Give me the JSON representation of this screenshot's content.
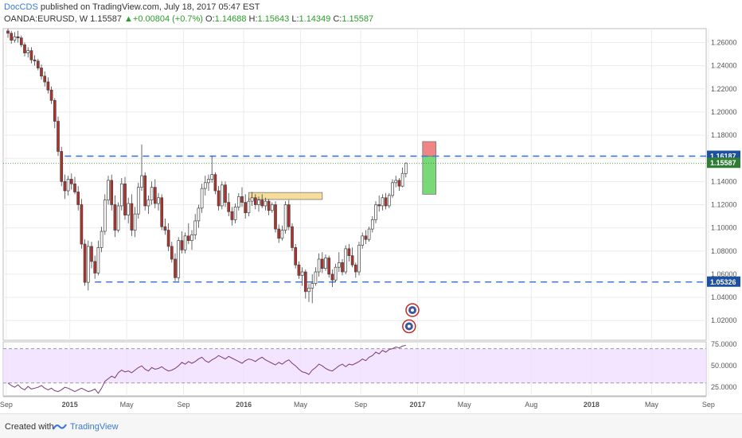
{
  "header": {
    "author": "DocCDS",
    "published_text": "published on TradingView.com, July 18, 2017 05:47 EST",
    "symbol": "OANDA:EURUSD, W",
    "last": "1.15587",
    "change": "+0.00804 (+0.7%)",
    "open_label": "O:",
    "open": "1.14688",
    "high_label": "H:",
    "high": "1.15643",
    "low_label": "L:",
    "low": "1.14349",
    "close_label": "C:",
    "close": "1.15587"
  },
  "footer": {
    "created_with": "Created with",
    "brand": "TradingView"
  },
  "chart_data": {
    "type": "candlestick",
    "timeframe": "W",
    "ylim": [
      1.003,
      1.272
    ],
    "x_tick_labels": [
      "Sep",
      "2015",
      "May",
      "Sep",
      "2016",
      "May",
      "Sep",
      "2017",
      "May",
      "Aug",
      "2018",
      "May",
      "Sep"
    ],
    "y_tick_labels": [
      "1.26000",
      "1.24000",
      "1.22000",
      "1.20000",
      "1.18000",
      "1.16000",
      "1.14000",
      "1.12000",
      "1.10000",
      "1.08000",
      "1.06000",
      "1.04000",
      "1.02000"
    ],
    "y_ticks": [
      1.26,
      1.24,
      1.22,
      1.2,
      1.18,
      1.16,
      1.14,
      1.12,
      1.1,
      1.08,
      1.06,
      1.04,
      1.02
    ],
    "price_labels": [
      {
        "text": "1.16187",
        "value": 1.16187,
        "color": "#1e50a0"
      },
      {
        "text": "1.15587",
        "value": 1.15587,
        "color": "#2e7d32"
      },
      {
        "text": "1.05326",
        "value": 1.05326,
        "color": "#1e50a0"
      }
    ],
    "hlines": [
      {
        "value": 1.16187,
        "style": "dashed",
        "color": "#3c78d8"
      },
      {
        "value": 1.05326,
        "style": "dashed",
        "color": "#3c78d8"
      },
      {
        "value": 1.15587,
        "style": "dotted",
        "color": "#2e7d32"
      }
    ],
    "zones": [
      {
        "name": "supply-box",
        "from_week": 72,
        "to_week": 94,
        "low": 1.1245,
        "high": 1.1305,
        "color": "#f5d78b"
      },
      {
        "name": "stop-box",
        "from_week": 124,
        "to_week": 128,
        "low": 1.1619,
        "high": 1.1745,
        "color": "#ee6e6e"
      },
      {
        "name": "target-box",
        "from_week": 124,
        "to_week": 128,
        "low": 1.129,
        "high": 1.1619,
        "color": "#5fd35f"
      }
    ],
    "candles": [
      [
        1.27,
        1.272,
        1.264,
        1.268
      ],
      [
        1.268,
        1.27,
        1.259,
        1.262
      ],
      [
        1.262,
        1.269,
        1.26,
        1.265
      ],
      [
        1.265,
        1.27,
        1.26,
        1.264
      ],
      [
        1.264,
        1.266,
        1.256,
        1.258
      ],
      [
        1.258,
        1.26,
        1.248,
        1.251
      ],
      [
        1.251,
        1.256,
        1.247,
        1.253
      ],
      [
        1.253,
        1.256,
        1.242,
        1.245
      ],
      [
        1.245,
        1.249,
        1.24,
        1.244
      ],
      [
        1.244,
        1.246,
        1.236,
        1.238
      ],
      [
        1.238,
        1.241,
        1.228,
        1.231
      ],
      [
        1.231,
        1.235,
        1.222,
        1.226
      ],
      [
        1.226,
        1.23,
        1.216,
        1.219
      ],
      [
        1.219,
        1.222,
        1.207,
        1.21
      ],
      [
        1.21,
        1.212,
        1.186,
        1.192
      ],
      [
        1.192,
        1.196,
        1.162,
        1.166
      ],
      [
        1.166,
        1.17,
        1.136,
        1.14
      ],
      [
        1.14,
        1.146,
        1.125,
        1.132
      ],
      [
        1.132,
        1.145,
        1.128,
        1.142
      ],
      [
        1.142,
        1.147,
        1.133,
        1.138
      ],
      [
        1.138,
        1.144,
        1.129,
        1.131
      ],
      [
        1.131,
        1.136,
        1.115,
        1.12
      ],
      [
        1.12,
        1.125,
        1.082,
        1.086
      ],
      [
        1.086,
        1.09,
        1.05,
        1.053
      ],
      [
        1.053,
        1.089,
        1.046,
        1.084
      ],
      [
        1.084,
        1.088,
        1.065,
        1.071
      ],
      [
        1.071,
        1.076,
        1.056,
        1.061
      ],
      [
        1.061,
        1.089,
        1.059,
        1.083
      ],
      [
        1.083,
        1.101,
        1.079,
        1.097
      ],
      [
        1.097,
        1.129,
        1.094,
        1.124
      ],
      [
        1.124,
        1.145,
        1.12,
        1.141
      ],
      [
        1.141,
        1.146,
        1.115,
        1.12
      ],
      [
        1.12,
        1.128,
        1.092,
        1.098
      ],
      [
        1.098,
        1.122,
        1.096,
        1.119
      ],
      [
        1.119,
        1.143,
        1.115,
        1.138
      ],
      [
        1.138,
        1.144,
        1.107,
        1.111
      ],
      [
        1.111,
        1.126,
        1.104,
        1.121
      ],
      [
        1.121,
        1.129,
        1.093,
        1.098
      ],
      [
        1.098,
        1.118,
        1.092,
        1.112
      ],
      [
        1.112,
        1.139,
        1.108,
        1.135
      ],
      [
        1.135,
        1.172,
        1.132,
        1.145
      ],
      [
        1.145,
        1.148,
        1.115,
        1.119
      ],
      [
        1.119,
        1.128,
        1.112,
        1.124
      ],
      [
        1.124,
        1.14,
        1.12,
        1.135
      ],
      [
        1.135,
        1.142,
        1.117,
        1.121
      ],
      [
        1.121,
        1.13,
        1.115,
        1.126
      ],
      [
        1.126,
        1.129,
        1.098,
        1.101
      ],
      [
        1.101,
        1.108,
        1.094,
        1.098
      ],
      [
        1.098,
        1.104,
        1.08,
        1.084
      ],
      [
        1.084,
        1.088,
        1.07,
        1.073
      ],
      [
        1.073,
        1.078,
        1.054,
        1.057
      ],
      [
        1.057,
        1.092,
        1.054,
        1.089
      ],
      [
        1.089,
        1.097,
        1.078,
        1.081
      ],
      [
        1.081,
        1.096,
        1.078,
        1.093
      ],
      [
        1.093,
        1.104,
        1.086,
        1.089
      ],
      [
        1.089,
        1.098,
        1.081,
        1.094
      ],
      [
        1.094,
        1.112,
        1.09,
        1.106
      ],
      [
        1.106,
        1.12,
        1.1,
        1.117
      ],
      [
        1.117,
        1.138,
        1.113,
        1.134
      ],
      [
        1.134,
        1.145,
        1.128,
        1.139
      ],
      [
        1.139,
        1.146,
        1.132,
        1.142
      ],
      [
        1.142,
        1.162,
        1.139,
        1.146
      ],
      [
        1.146,
        1.148,
        1.129,
        1.132
      ],
      [
        1.132,
        1.136,
        1.115,
        1.119
      ],
      [
        1.119,
        1.14,
        1.116,
        1.137
      ],
      [
        1.137,
        1.14,
        1.118,
        1.122
      ],
      [
        1.122,
        1.13,
        1.11,
        1.114
      ],
      [
        1.114,
        1.118,
        1.102,
        1.107
      ],
      [
        1.107,
        1.121,
        1.104,
        1.118
      ],
      [
        1.118,
        1.13,
        1.115,
        1.127
      ],
      [
        1.127,
        1.135,
        1.118,
        1.122
      ],
      [
        1.122,
        1.129,
        1.108,
        1.113
      ],
      [
        1.113,
        1.126,
        1.11,
        1.123
      ],
      [
        1.123,
        1.131,
        1.119,
        1.126
      ],
      [
        1.126,
        1.129,
        1.116,
        1.12
      ],
      [
        1.12,
        1.127,
        1.114,
        1.124
      ],
      [
        1.124,
        1.129,
        1.117,
        1.119
      ],
      [
        1.119,
        1.126,
        1.115,
        1.123
      ],
      [
        1.123,
        1.125,
        1.111,
        1.115
      ],
      [
        1.115,
        1.122,
        1.113,
        1.12
      ],
      [
        1.12,
        1.123,
        1.096,
        1.099
      ],
      [
        1.099,
        1.103,
        1.087,
        1.091
      ],
      [
        1.091,
        1.102,
        1.089,
        1.098
      ],
      [
        1.098,
        1.123,
        1.095,
        1.12
      ],
      [
        1.12,
        1.124,
        1.098,
        1.101
      ],
      [
        1.101,
        1.104,
        1.08,
        1.083
      ],
      [
        1.083,
        1.086,
        1.065,
        1.068
      ],
      [
        1.068,
        1.071,
        1.056,
        1.059
      ],
      [
        1.059,
        1.066,
        1.05,
        1.062
      ],
      [
        1.062,
        1.064,
        1.039,
        1.045
      ],
      [
        1.045,
        1.052,
        1.036,
        1.048
      ],
      [
        1.048,
        1.06,
        1.035,
        1.052
      ],
      [
        1.052,
        1.066,
        1.05,
        1.062
      ],
      [
        1.062,
        1.078,
        1.058,
        1.073
      ],
      [
        1.073,
        1.079,
        1.061,
        1.065
      ],
      [
        1.065,
        1.077,
        1.063,
        1.074
      ],
      [
        1.074,
        1.076,
        1.057,
        1.06
      ],
      [
        1.06,
        1.064,
        1.049,
        1.055
      ],
      [
        1.055,
        1.069,
        1.053,
        1.066
      ],
      [
        1.066,
        1.079,
        1.062,
        1.07
      ],
      [
        1.07,
        1.073,
        1.059,
        1.062
      ],
      [
        1.062,
        1.085,
        1.06,
        1.082
      ],
      [
        1.082,
        1.086,
        1.071,
        1.076
      ],
      [
        1.076,
        1.083,
        1.066,
        1.068
      ],
      [
        1.068,
        1.07,
        1.057,
        1.062
      ],
      [
        1.062,
        1.088,
        1.059,
        1.085
      ],
      [
        1.085,
        1.096,
        1.082,
        1.093
      ],
      [
        1.093,
        1.098,
        1.086,
        1.09
      ],
      [
        1.09,
        1.101,
        1.088,
        1.099
      ],
      [
        1.099,
        1.11,
        1.096,
        1.107
      ],
      [
        1.107,
        1.123,
        1.104,
        1.12
      ],
      [
        1.12,
        1.128,
        1.114,
        1.119
      ],
      [
        1.119,
        1.129,
        1.115,
        1.126
      ],
      [
        1.126,
        1.13,
        1.116,
        1.119
      ],
      [
        1.119,
        1.13,
        1.117,
        1.128
      ],
      [
        1.128,
        1.142,
        1.126,
        1.139
      ],
      [
        1.139,
        1.145,
        1.135,
        1.141
      ],
      [
        1.141,
        1.143,
        1.132,
        1.136
      ],
      [
        1.136,
        1.152,
        1.135,
        1.147
      ],
      [
        1.14688,
        1.15643,
        1.14349,
        1.15587
      ]
    ],
    "rsi": {
      "levels": [
        70,
        30
      ],
      "y_tick_labels": [
        "75.0000",
        "50.0000",
        "25.0000"
      ],
      "y_ticks": [
        75,
        50,
        25
      ],
      "ylim": [
        15,
        78
      ],
      "band_color": "#f0ddff",
      "line_color": "#7b3b7b",
      "values": [
        30,
        27,
        25,
        28,
        24,
        22,
        26,
        23,
        24,
        25,
        27,
        24,
        22,
        24,
        21,
        20,
        22,
        25,
        24,
        22,
        20,
        22,
        24,
        22,
        20,
        21,
        23,
        18,
        24,
        32,
        35,
        38,
        36,
        42,
        45,
        43,
        44,
        42,
        45,
        48,
        50,
        46,
        44,
        48,
        46,
        47,
        49,
        46,
        44,
        45,
        47,
        50,
        54,
        52,
        55,
        53,
        55,
        58,
        60,
        56,
        54,
        57,
        59,
        62,
        60,
        58,
        61,
        59,
        57,
        55,
        53,
        56,
        58,
        57,
        55,
        58,
        60,
        57,
        55,
        53,
        51,
        54,
        52,
        55,
        57,
        53,
        50,
        46,
        43,
        42,
        40,
        45,
        48,
        52,
        50,
        47,
        45,
        44,
        47,
        50,
        52,
        49,
        52,
        51,
        53,
        55,
        58,
        56,
        60,
        62,
        66,
        64,
        68,
        66,
        69,
        70,
        72,
        71,
        73,
        74
      ]
    },
    "x_ticks_week": [
      -0.5,
      18.5,
      35.5,
      52.5,
      70.5,
      87.5,
      105.5,
      122.5,
      136.5,
      156.5,
      174.5,
      192.5,
      209.5
    ]
  }
}
